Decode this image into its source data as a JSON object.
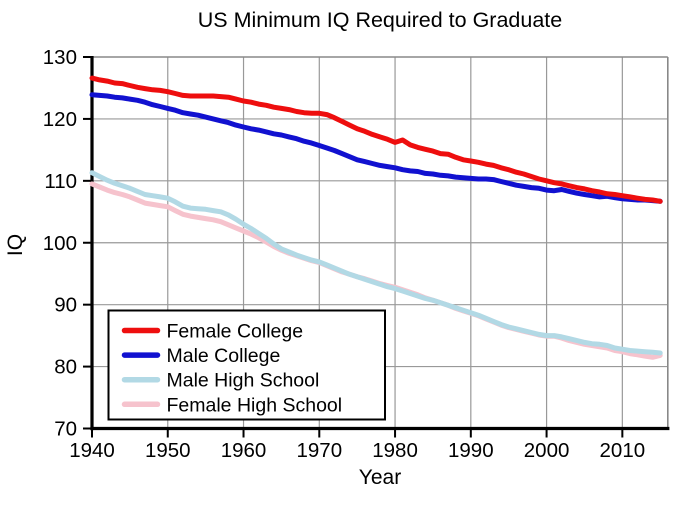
{
  "chart_data": {
    "type": "line",
    "title": "US Minimum IQ Required to Graduate",
    "xlabel": "Year",
    "ylabel": "IQ",
    "xlim": [
      1940,
      2016
    ],
    "ylim": [
      70,
      130
    ],
    "x_ticks": [
      1940,
      1950,
      1960,
      1970,
      1980,
      1990,
      2000,
      2010
    ],
    "y_ticks": [
      70,
      80,
      90,
      100,
      110,
      120,
      130
    ],
    "grid": true,
    "legend_position": "lower-left",
    "x_start": 1940,
    "x_step": 1,
    "style": {
      "background": "#ffffff",
      "grid_color": "#999999",
      "border_color": "#888888",
      "axis_color": "#000000",
      "text_color": "#000000",
      "line_width": 5
    },
    "series": [
      {
        "name": "Female College",
        "color": "#ee0e0e",
        "values": [
          126.6,
          126.3,
          126.1,
          125.8,
          125.7,
          125.4,
          125.1,
          124.9,
          124.7,
          124.6,
          124.4,
          124.1,
          123.8,
          123.7,
          123.7,
          123.7,
          123.7,
          123.6,
          123.5,
          123.2,
          122.9,
          122.7,
          122.4,
          122.2,
          121.9,
          121.7,
          121.5,
          121.2,
          121.0,
          120.9,
          120.9,
          120.7,
          120.2,
          119.6,
          119.0,
          118.4,
          118.0,
          117.5,
          117.1,
          116.7,
          116.2,
          116.6,
          115.8,
          115.4,
          115.1,
          114.8,
          114.4,
          114.3,
          113.8,
          113.4,
          113.2,
          113.0,
          112.7,
          112.5,
          112.1,
          111.8,
          111.4,
          111.1,
          110.7,
          110.3,
          110.0,
          109.7,
          109.5,
          109.2,
          108.9,
          108.7,
          108.4,
          108.2,
          107.9,
          107.8,
          107.6,
          107.4,
          107.2,
          107.0,
          106.9,
          106.7
        ]
      },
      {
        "name": "Male College",
        "color": "#1111d0",
        "values": [
          123.9,
          123.8,
          123.7,
          123.5,
          123.4,
          123.2,
          123.0,
          122.7,
          122.3,
          122.0,
          121.7,
          121.4,
          121.0,
          120.8,
          120.6,
          120.3,
          120.0,
          119.7,
          119.4,
          119.0,
          118.7,
          118.4,
          118.2,
          117.9,
          117.6,
          117.4,
          117.1,
          116.8,
          116.4,
          116.1,
          115.7,
          115.3,
          114.9,
          114.4,
          113.9,
          113.4,
          113.1,
          112.8,
          112.5,
          112.3,
          112.1,
          111.8,
          111.6,
          111.5,
          111.2,
          111.1,
          110.9,
          110.8,
          110.6,
          110.5,
          110.4,
          110.3,
          110.3,
          110.2,
          109.9,
          109.6,
          109.3,
          109.1,
          108.9,
          108.8,
          108.5,
          108.4,
          108.6,
          108.3,
          108.0,
          107.8,
          107.6,
          107.4,
          107.5,
          107.3,
          107.1,
          107.0,
          106.9,
          106.9,
          106.8,
          106.7
        ]
      },
      {
        "name": "Male High School",
        "color": "#b2d9e5",
        "values": [
          111.3,
          110.7,
          110.1,
          109.6,
          109.2,
          108.8,
          108.3,
          107.8,
          107.6,
          107.4,
          107.2,
          106.6,
          105.9,
          105.6,
          105.5,
          105.4,
          105.2,
          105.0,
          104.5,
          103.8,
          103.0,
          102.3,
          101.5,
          100.7,
          99.8,
          99.0,
          98.5,
          98.0,
          97.6,
          97.2,
          96.9,
          96.4,
          95.9,
          95.4,
          94.9,
          94.5,
          94.1,
          93.7,
          93.3,
          92.9,
          92.6,
          92.2,
          91.8,
          91.4,
          91.0,
          90.7,
          90.3,
          89.9,
          89.5,
          89.1,
          88.7,
          88.3,
          87.8,
          87.3,
          86.8,
          86.4,
          86.1,
          85.8,
          85.5,
          85.2,
          85.0,
          85.0,
          84.8,
          84.5,
          84.2,
          83.9,
          83.7,
          83.6,
          83.4,
          83.0,
          82.8,
          82.6,
          82.5,
          82.4,
          82.3,
          82.2
        ]
      },
      {
        "name": "Female High School",
        "color": "#f6c3cd",
        "values": [
          109.5,
          109.0,
          108.5,
          108.1,
          107.8,
          107.4,
          106.9,
          106.4,
          106.2,
          106.0,
          105.8,
          105.2,
          104.6,
          104.3,
          104.1,
          103.9,
          103.7,
          103.4,
          102.9,
          102.4,
          101.9,
          101.4,
          100.8,
          100.1,
          99.4,
          98.8,
          98.3,
          97.9,
          97.5,
          97.1,
          96.8,
          96.3,
          95.8,
          95.3,
          94.9,
          94.5,
          94.2,
          93.8,
          93.4,
          93.1,
          92.8,
          92.4,
          92.0,
          91.6,
          91.1,
          90.7,
          90.3,
          89.9,
          89.4,
          89.0,
          88.6,
          88.2,
          87.7,
          87.2,
          86.7,
          86.3,
          86.0,
          85.7,
          85.4,
          85.1,
          84.9,
          84.9,
          84.6,
          84.2,
          83.9,
          83.6,
          83.4,
          83.2,
          83.0,
          82.6,
          82.4,
          82.1,
          81.9,
          81.7,
          81.5,
          81.8
        ]
      }
    ]
  }
}
